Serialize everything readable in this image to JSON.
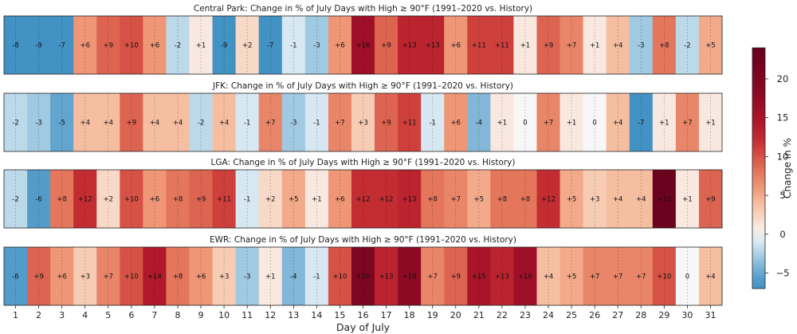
{
  "chart_data": {
    "type": "heatmap",
    "xlabel": "Day of July",
    "x": [
      1,
      2,
      3,
      4,
      5,
      6,
      7,
      8,
      9,
      10,
      11,
      12,
      13,
      14,
      15,
      16,
      17,
      18,
      19,
      20,
      21,
      22,
      23,
      24,
      25,
      26,
      27,
      28,
      29,
      30,
      31
    ],
    "colorbar": {
      "label": "Change in %",
      "range": [
        -7,
        24
      ],
      "ticks": [
        -5,
        0,
        5,
        10,
        15,
        20
      ],
      "colormap": "RdBu_r (diverging, centered at 0)"
    },
    "panels": [
      {
        "title": "Central Park: Change in % of July Days with High ≥ 90°F (1991–2020 vs. History)",
        "values": [
          -8,
          -9,
          -7,
          6,
          9,
          10,
          6,
          -2,
          1,
          -9,
          2,
          -7,
          -1,
          -3,
          6,
          16,
          9,
          13,
          13,
          6,
          11,
          11,
          1,
          9,
          7,
          1,
          4,
          -3,
          8,
          -2,
          5
        ]
      },
      {
        "title": "JFK: Change in % of July Days with High ≥ 90°F (1991–2020 vs. History)",
        "values": [
          -2,
          -3,
          -5,
          4,
          4,
          9,
          4,
          4,
          -2,
          4,
          -1,
          7,
          -3,
          -1,
          7,
          3,
          9,
          11,
          -1,
          6,
          -4,
          1,
          0,
          7,
          1,
          0,
          4,
          -7,
          1,
          7,
          1
        ]
      },
      {
        "title": "LGA: Change in % of July Days with High ≥ 90°F (1991–2020 vs. History)",
        "values": [
          -2,
          -6,
          8,
          12,
          2,
          10,
          6,
          8,
          9,
          11,
          -1,
          2,
          5,
          1,
          6,
          12,
          12,
          13,
          8,
          7,
          5,
          8,
          8,
          12,
          5,
          3,
          4,
          4,
          23,
          1,
          9
        ]
      },
      {
        "title": "EWR: Change in % of July Days with High ≥ 90°F (1991–2020 vs. History)",
        "values": [
          -6,
          9,
          6,
          3,
          7,
          10,
          14,
          8,
          6,
          3,
          -3,
          1,
          -4,
          -1,
          10,
          20,
          13,
          18,
          7,
          9,
          15,
          13,
          16,
          4,
          5,
          7,
          7,
          7,
          10,
          0,
          4
        ]
      }
    ]
  }
}
